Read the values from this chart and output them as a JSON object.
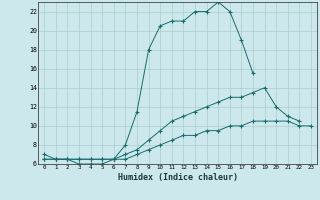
{
  "xlabel": "Humidex (Indice chaleur)",
  "background_color": "#cce8ec",
  "grid_color": "#aacccc",
  "line_color": "#1a6b6b",
  "xlim": [
    -0.5,
    23.5
  ],
  "ylim": [
    6,
    23
  ],
  "xticks": [
    0,
    1,
    2,
    3,
    4,
    5,
    6,
    7,
    8,
    9,
    10,
    11,
    12,
    13,
    14,
    15,
    16,
    17,
    18,
    19,
    20,
    21,
    22,
    23
  ],
  "yticks": [
    6,
    8,
    10,
    12,
    14,
    16,
    18,
    20,
    22
  ],
  "line1_x": [
    0,
    1,
    2,
    3,
    4,
    5,
    6,
    7,
    8,
    9,
    10,
    11,
    12,
    13,
    14,
    15,
    16,
    17,
    18
  ],
  "line1_y": [
    7,
    6.5,
    6.5,
    6,
    6,
    6,
    6.5,
    8,
    11.5,
    18,
    20.5,
    21,
    21,
    22,
    22,
    23,
    22,
    19,
    15.5
  ],
  "line2_x": [
    0,
    1,
    2,
    3,
    4,
    5,
    6,
    7,
    8,
    9,
    10,
    11,
    12,
    13,
    14,
    15,
    16,
    17,
    18,
    19,
    20,
    21,
    22
  ],
  "line2_y": [
    6.5,
    6.5,
    6.5,
    6.5,
    6.5,
    6.5,
    6.5,
    7,
    7.5,
    8.5,
    9.5,
    10.5,
    11,
    11.5,
    12,
    12.5,
    13,
    13,
    13.5,
    14,
    12,
    11,
    10.5
  ],
  "line3_x": [
    0,
    1,
    2,
    3,
    4,
    5,
    6,
    7,
    8,
    9,
    10,
    11,
    12,
    13,
    14,
    15,
    16,
    17,
    18,
    19,
    20,
    21,
    22,
    23
  ],
  "line3_y": [
    6.5,
    6.5,
    6.5,
    6.5,
    6.5,
    6.5,
    6.5,
    6.5,
    7,
    7.5,
    8,
    8.5,
    9,
    9,
    9.5,
    9.5,
    10,
    10,
    10.5,
    10.5,
    10.5,
    10.5,
    10,
    10
  ]
}
